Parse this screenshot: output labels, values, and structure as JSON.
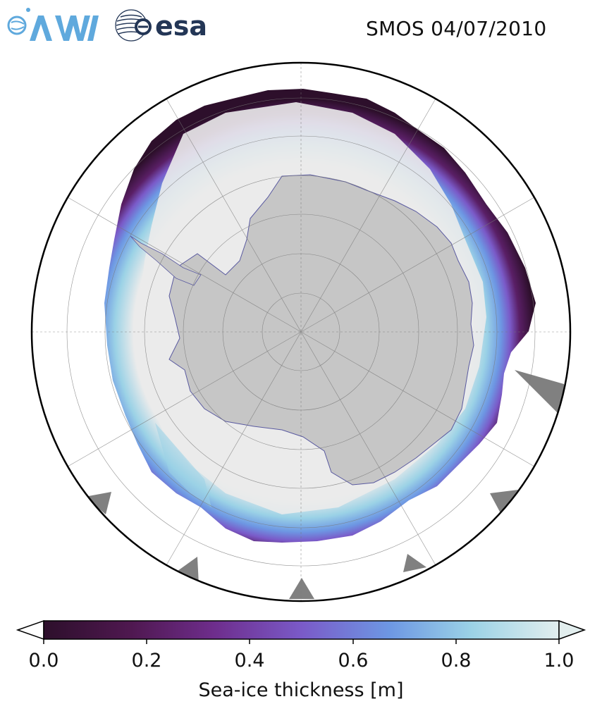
{
  "logos": {
    "awi": {
      "text": "AWI",
      "color": "#5fa9dd"
    },
    "esa": {
      "text": "esa",
      "color": "#233656"
    }
  },
  "map": {
    "date_label": "SMOS 04/07/2010",
    "projection": "south polar stereographic",
    "land_color": "#c6c6c6",
    "ice_shelf_color": "#ebebeb",
    "no_data_color": "#808080",
    "ocean_color": "#ffffff",
    "graticule": true
  },
  "colorbar": {
    "title": "Sea-ice thickness [m]",
    "ticks": [
      "0.0",
      "0.2",
      "0.4",
      "0.6",
      "0.8",
      "1.0"
    ],
    "range": [
      0.0,
      1.0
    ],
    "extend": "both",
    "colormap": [
      "#2d0f2b",
      "#4f1850",
      "#6e2d8c",
      "#7a5ac8",
      "#6d97e3",
      "#9bd2e6",
      "#e2eeee"
    ]
  }
}
